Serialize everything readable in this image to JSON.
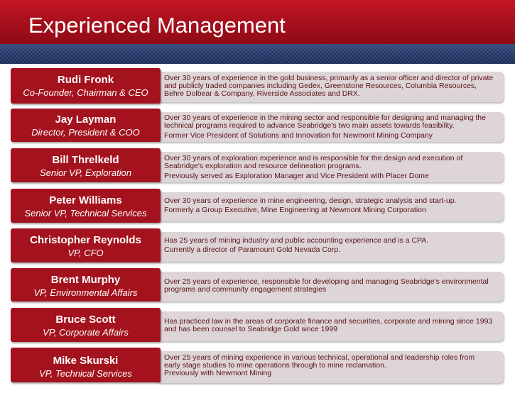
{
  "slide": {
    "title": "Experienced Management"
  },
  "people": [
    {
      "name": "Rudi Fronk",
      "role": "Co-Founder, Chairman & CEO",
      "desc_lines": [
        "Over 30 years of experience in the gold business, primarily as a senior officer and director of private",
        "and publicly traded companies including Gedex, Greenstone Resources, Columbia Resources,",
        "Behre Dolbear & Company, Riverside Associates and DRX."
      ]
    },
    {
      "name": "Jay Layman",
      "role": "Director, President & COO",
      "desc_lines": [
        "Over 30 years of experience in the mining sector and responsible for designing and managing the",
        "technical programs required to advance Seabridge's two main assets towards feasibility.",
        "Former Vice President of Solutions and Innovation for Newmont Mining Company"
      ]
    },
    {
      "name": "Bill Threlkeld",
      "role": "Senior VP, Exploration",
      "desc_lines": [
        "Over 30 years of exploration experience and is responsible for the design and execution of",
        "Seabridge's exploration and resource delineation programs.",
        "Previously served as Exploration Manager and Vice President with Placer Dome"
      ]
    },
    {
      "name": "Peter Williams",
      "role": "Senior VP, Technical Services",
      "desc_lines": [
        "Over 30 years of experience in mine engineering, design, strategic analysis and start-up.",
        "Formerly a Group Executive, Mine Engineering at Newmont Mining Corporation"
      ]
    },
    {
      "name": "Christopher Reynolds",
      "role": "VP, CFO",
      "desc_lines": [
        "Has 25 years of mining industry and public accounting experience and is a CPA.",
        "Currently a director of Paramount Gold Nevada Corp."
      ]
    },
    {
      "name": "Brent Murphy",
      "role": "VP, Environmental Affairs",
      "desc_lines": [
        "Over 25 years of experience, responsible for developing and managing Seabridge's environmental",
        "programs and community engagement strategies"
      ]
    },
    {
      "name": "Bruce Scott",
      "role": "VP, Corporate Affairs",
      "desc_lines": [
        "Has practiced law in the areas of corporate finance and securities, corporate and mining since 1993",
        "and has been counsel to Seabridge Gold since 1999"
      ]
    },
    {
      "name": "Mike Skurski",
      "role": "VP, Technical Services",
      "desc_lines": [
        "Over 25 years of mining experience in various technical, operational and leadership roles from",
        "early stage studies to mine operations through to mine reclamation.",
        "Previously with Newmont Mining"
      ]
    }
  ]
}
